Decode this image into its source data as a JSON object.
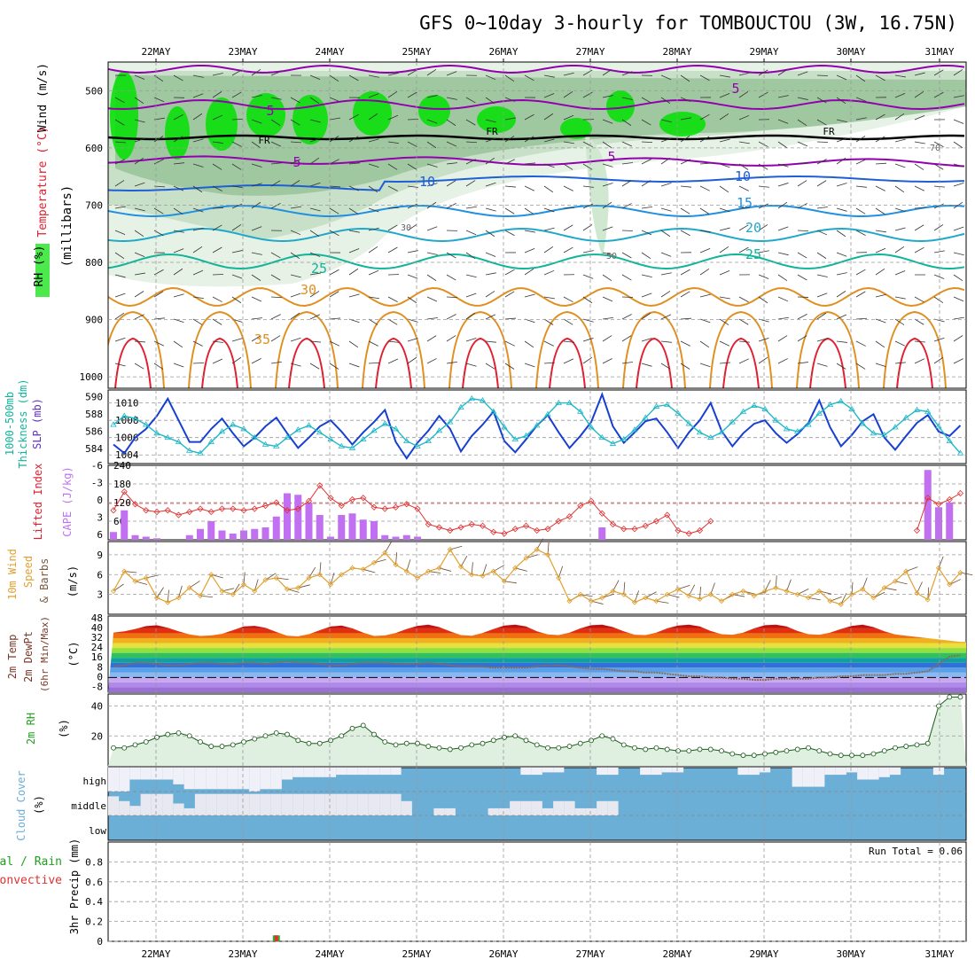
{
  "title": "GFS 0~10day 3-hourly for TOMBOUCTOU (3W, 16.75N)",
  "dates": [
    "22MAY",
    "23MAY",
    "24MAY",
    "25MAY",
    "26MAY",
    "27MAY",
    "28MAY",
    "29MAY",
    "30MAY",
    "31MAY"
  ],
  "colors": {
    "purple": "#9400b0",
    "blue": "#1f5fd6",
    "cyan": "#20a8c8",
    "teal": "#10b49a",
    "orange": "#e09020",
    "red": "#e02030",
    "rh_green": "#00e000",
    "cape": "#c070f0",
    "cloud_blue": "#6baed6",
    "cloud_white": "#f0f0f8",
    "wind_orange": "#e0a030"
  },
  "chart_data": [
    {
      "type": "contour",
      "panel": "pressure-time cross-section",
      "ylabel_parts": [
        "Wind (m/s)",
        "Temperature (°C)",
        "RH (%)",
        "(millibars)"
      ],
      "yticks": [
        "500",
        "600",
        "700",
        "800",
        "900",
        "1000"
      ],
      "ylim": [
        450,
        1020
      ],
      "isotherm_labels": [
        "5",
        "5",
        "5",
        "5",
        "10",
        "10",
        "15",
        "20",
        "25",
        "25",
        "30",
        "35"
      ],
      "freezing_label": "FR",
      "rh_labels": [
        "30",
        "50",
        "70"
      ]
    },
    {
      "type": "line",
      "panel": "thickness-slp",
      "ylabel_left": [
        "1000-500mb",
        "Thickness (dm)"
      ],
      "ylabel_right": "SLP (mb)",
      "yticks_left": [
        "584",
        "586",
        "588",
        "590"
      ],
      "yticks_right": [
        "1004",
        "1006",
        "1008",
        "1010"
      ],
      "ylim": [
        1003,
        1011.5
      ],
      "series": [
        {
          "name": "Thickness",
          "values": [
            1005.2,
            1004.2,
            1006.0,
            1007.0,
            1008.5,
            1010.5,
            1008.0,
            1005.5,
            1005.5,
            1007.0,
            1008.2,
            1006.5,
            1005.0,
            1006.0,
            1007.3,
            1008.3,
            1006.5,
            1004.8,
            1006.0,
            1007.3,
            1008.0,
            1006.7,
            1005.2,
            1006.6,
            1007.8,
            1009.2,
            1005.5,
            1003.6,
            1005.4,
            1006.8,
            1008.5,
            1007.0,
            1004.4,
            1006.2,
            1007.5,
            1009.0,
            1005.6,
            1004.3,
            1005.8,
            1007.4,
            1008.6,
            1006.6,
            1004.8,
            1006.2,
            1007.8,
            1011.0,
            1007.3,
            1005.4,
            1006.6,
            1007.9,
            1008.2,
            1006.6,
            1004.8,
            1006.6,
            1008.0,
            1010.0,
            1006.8,
            1005.0,
            1006.5,
            1007.6,
            1008.0,
            1006.5,
            1005.4,
            1006.4,
            1007.7,
            1010.3,
            1007.2,
            1005.0,
            1006.3,
            1007.9,
            1008.7,
            1006.0,
            1004.6,
            1006.2,
            1007.7,
            1008.6,
            1006.7,
            1006.2,
            1007.4
          ]
        },
        {
          "name": "SLP",
          "values": [
            1007.5,
            1008.5,
            1008.2,
            1007.5,
            1006.5,
            1006.0,
            1005.5,
            1004.5,
            1004.2,
            1005.5,
            1006.7,
            1007.5,
            1007.0,
            1006.0,
            1005.2,
            1005.0,
            1006.0,
            1006.9,
            1007.4,
            1006.6,
            1005.8,
            1005.0,
            1004.8,
            1005.8,
            1006.8,
            1007.6,
            1007.0,
            1005.6,
            1005.0,
            1005.6,
            1006.8,
            1007.8,
            1009.5,
            1010.5,
            1010.3,
            1009.0,
            1007.2,
            1005.8,
            1006.2,
            1007.4,
            1008.7,
            1010.0,
            1010.0,
            1009.0,
            1007.2,
            1006.0,
            1005.3,
            1005.8,
            1006.9,
            1008.3,
            1009.6,
            1009.8,
            1008.8,
            1007.6,
            1006.6,
            1006.0,
            1006.6,
            1007.8,
            1009.0,
            1009.7,
            1009.3,
            1008.0,
            1007.0,
            1006.7,
            1007.5,
            1008.8,
            1009.8,
            1010.2,
            1009.3,
            1007.6,
            1006.5,
            1006.3,
            1007.2,
            1008.3,
            1009.2,
            1009.0,
            1007.3,
            1005.6,
            1004.2
          ]
        }
      ]
    },
    {
      "type": "bar",
      "panel": "lifted index / cape",
      "ylabel_left": "Lifted Index",
      "ylabel_right": "CAPE (J/kg)",
      "yticks_left": [
        "-6",
        "-3",
        "0",
        "3",
        "6"
      ],
      "yticks_right": [
        "60",
        "120",
        "180",
        "240"
      ],
      "ylim": [
        0,
        240
      ],
      "series": [
        {
          "name": "CAPE",
          "values": [
            25,
            95,
            15,
            10,
            5,
            0,
            0,
            15,
            35,
            60,
            30,
            20,
            30,
            35,
            40,
            75,
            150,
            145,
            120,
            80,
            10,
            80,
            85,
            65,
            60,
            15,
            10,
            15,
            10,
            0,
            0,
            0,
            0,
            0,
            0,
            0,
            0,
            0,
            0,
            0,
            0,
            0,
            0,
            0,
            0,
            40,
            0,
            0,
            0,
            0,
            0,
            0,
            0,
            0,
            0,
            0,
            0,
            0,
            0,
            0,
            0,
            0,
            0,
            0,
            0,
            0,
            0,
            0,
            0,
            0,
            0,
            0,
            0,
            0,
            0,
            225,
            105,
            120,
            0
          ]
        },
        {
          "name": "Lifted Index",
          "values": [
            95,
            155,
            115,
            95,
            90,
            95,
            80,
            90,
            100,
            90,
            100,
            100,
            95,
            100,
            110,
            120,
            95,
            100,
            125,
            175,
            135,
            110,
            130,
            135,
            105,
            100,
            105,
            115,
            100,
            50,
            40,
            30,
            40,
            50,
            45,
            25,
            20,
            35,
            45,
            30,
            35,
            60,
            75,
            110,
            125,
            85,
            50,
            35,
            35,
            45,
            60,
            80,
            30,
            20,
            30,
            60,
            0,
            0,
            0,
            0,
            0,
            0,
            0,
            0,
            0,
            0,
            0,
            0,
            0,
            0,
            0,
            0,
            0,
            0,
            30,
            135,
            115,
            130,
            150
          ]
        }
      ]
    },
    {
      "type": "line",
      "panel": "10m wind",
      "ylabel": [
        "10m Wind",
        "Speed",
        "& Barbs",
        "(m/s)"
      ],
      "yticks": [
        "3",
        "6",
        "9"
      ],
      "ylim": [
        0,
        11
      ],
      "series": [
        {
          "name": "Speed",
          "values": [
            3.5,
            6.5,
            5.0,
            5.5,
            2.5,
            1.8,
            2.5,
            4.0,
            2.8,
            6.0,
            3.5,
            3.0,
            4.5,
            3.5,
            5.2,
            5.5,
            3.8,
            4.0,
            5.5,
            6.0,
            4.5,
            6.0,
            7.0,
            6.8,
            7.8,
            9.3,
            7.5,
            6.5,
            5.5,
            6.5,
            7.0,
            9.8,
            7.2,
            6.0,
            5.8,
            6.5,
            5.0,
            7.0,
            8.5,
            9.8,
            9.0,
            5.5,
            2.0,
            3.0,
            2.0,
            2.5,
            3.5,
            3.0,
            1.8,
            2.5,
            2.0,
            3.0,
            3.8,
            2.8,
            2.3,
            3.0,
            2.0,
            3.0,
            3.5,
            2.8,
            3.5,
            4.0,
            3.5,
            3.0,
            2.5,
            3.5,
            2.0,
            1.5,
            3.0,
            3.8,
            2.5,
            4.0,
            5.0,
            6.5,
            3.2,
            2.2,
            7.0,
            4.5,
            6.3
          ]
        }
      ]
    },
    {
      "type": "area",
      "panel": "2m temperature",
      "ylabel": [
        "2m Temp",
        "2m DewPt",
        "(6hr Min/Max)",
        "(°C)"
      ],
      "yticks": [
        "-8",
        "0",
        "8",
        "16",
        "24",
        "32",
        "40",
        "48"
      ],
      "ylim": [
        -12,
        50
      ],
      "series": [
        {
          "name": "Temperature",
          "values": [
            36.5,
            37.5,
            39.5,
            41.8,
            42.5,
            40.5,
            37.5,
            35.0,
            33.8,
            34.2,
            35.5,
            38.5,
            41.5,
            42.0,
            40.5,
            37.0,
            34.0,
            33.5,
            35.2,
            38.5,
            41.5,
            42.2,
            40.0,
            36.5,
            33.8,
            34.2,
            36.2,
            39.5,
            42.0,
            43.0,
            41.0,
            37.5,
            34.5,
            34.0,
            36.2,
            39.5,
            42.2,
            43.0,
            41.5,
            37.5,
            35.0,
            34.5,
            36.5,
            40.0,
            42.5,
            43.0,
            41.0,
            37.5,
            34.8,
            34.5,
            36.5,
            40.0,
            42.2,
            43.0,
            41.5,
            37.8,
            35.2,
            34.8,
            36.5,
            40.0,
            42.5,
            43.0,
            41.5,
            37.8,
            35.2,
            34.8,
            36.5,
            39.5,
            42.0,
            43.0,
            41.0,
            37.5,
            35.0,
            34.0,
            33.0,
            32.0,
            31.0,
            30.0,
            29.0
          ]
        },
        {
          "name": "Dewpoint",
          "values": [
            9,
            10,
            12,
            12,
            11,
            10,
            10,
            11,
            12,
            12,
            11,
            11,
            12,
            12,
            11,
            12,
            13,
            12,
            12,
            11,
            10,
            10,
            11,
            12,
            12,
            12,
            11,
            11,
            11,
            12,
            11,
            10,
            9,
            9,
            9,
            8,
            8,
            8,
            8,
            9,
            10,
            10,
            9,
            8,
            7,
            7,
            6,
            5,
            5,
            4,
            4,
            3,
            2,
            1,
            1,
            0,
            0,
            -1,
            -1,
            -2,
            -2,
            -1,
            -1,
            -1,
            -1,
            0,
            0,
            1,
            1,
            2,
            2,
            2,
            3,
            3,
            4,
            5,
            11,
            17,
            18
          ]
        }
      ]
    },
    {
      "type": "area",
      "panel": "2m rh",
      "ylabel": [
        "2m RH",
        "(%)"
      ],
      "yticks": [
        "20",
        "40"
      ],
      "ylim": [
        0,
        48
      ],
      "series": [
        {
          "name": "RH",
          "values": [
            12,
            12,
            14,
            16,
            19,
            21,
            22,
            20,
            16,
            13,
            13,
            14,
            16,
            18,
            20,
            22,
            21,
            17,
            15,
            15,
            17,
            20,
            25,
            27,
            21,
            16,
            14,
            15,
            15,
            13,
            12,
            11,
            12,
            14,
            15,
            17,
            19,
            20,
            17,
            14,
            12,
            12,
            13,
            15,
            17,
            20,
            18,
            14,
            12,
            11,
            12,
            11,
            10,
            10,
            11,
            11,
            10,
            8,
            7,
            7,
            8,
            9,
            10,
            11,
            12,
            10,
            8,
            7,
            7,
            7,
            8,
            10,
            12,
            13,
            14,
            15,
            40,
            46,
            46
          ]
        }
      ]
    },
    {
      "type": "bar",
      "panel": "cloud cover",
      "ylabel": [
        "Cloud Cover",
        "(%)"
      ],
      "ytick_labels": [
        "high",
        "middle",
        "low"
      ],
      "series": [
        {
          "name": "High",
          "values": [
            100,
            100,
            50,
            50,
            50,
            50,
            70,
            90,
            90,
            90,
            90,
            90,
            90,
            100,
            90,
            90,
            50,
            40,
            40,
            40,
            40,
            30,
            30,
            30,
            30,
            30,
            30,
            0,
            0,
            0,
            0,
            0,
            0,
            0,
            0,
            0,
            0,
            0,
            30,
            30,
            20,
            20,
            0,
            0,
            0,
            30,
            30,
            0,
            0,
            30,
            30,
            20,
            20,
            0,
            0,
            0,
            0,
            0,
            30,
            30,
            20,
            0,
            0,
            80,
            80,
            80,
            30,
            30,
            20,
            50,
            50,
            40,
            30,
            0,
            0,
            0,
            30,
            0,
            0
          ]
        },
        {
          "name": "Middle",
          "values": [
            80,
            60,
            40,
            90,
            90,
            90,
            50,
            30,
            90,
            90,
            90,
            90,
            90,
            90,
            90,
            90,
            90,
            90,
            90,
            90,
            90,
            90,
            90,
            90,
            90,
            90,
            90,
            60,
            0,
            0,
            30,
            30,
            0,
            0,
            0,
            30,
            30,
            60,
            60,
            60,
            30,
            60,
            60,
            30,
            30,
            60,
            60,
            0,
            0,
            0,
            0,
            0,
            0,
            0,
            0,
            0,
            0,
            0,
            0,
            0,
            0,
            0,
            0,
            0,
            0,
            0,
            0,
            0,
            0,
            0,
            0,
            0,
            0,
            0,
            0,
            0,
            0,
            0,
            0
          ]
        }
      ]
    },
    {
      "type": "bar",
      "panel": "3hr precip",
      "ylabel": [
        "Total / Rain",
        "Convective",
        "3hr Precip (mm)"
      ],
      "yticks": [
        "0",
        "0.2",
        "0.4",
        "0.6",
        "0.8"
      ],
      "ylim": [
        0,
        1.0
      ],
      "annotation": "Run Total = 0.06",
      "series": [
        {
          "name": "Total",
          "values": [
            0,
            0,
            0,
            0,
            0,
            0,
            0,
            0,
            0,
            0,
            0,
            0,
            0,
            0,
            0,
            0.06,
            0,
            0,
            0,
            0,
            0,
            0,
            0,
            0,
            0,
            0,
            0,
            0,
            0,
            0,
            0,
            0,
            0,
            0,
            0,
            0,
            0,
            0,
            0,
            0,
            0,
            0,
            0,
            0,
            0,
            0,
            0,
            0,
            0,
            0,
            0,
            0,
            0,
            0,
            0,
            0,
            0,
            0,
            0,
            0,
            0,
            0,
            0,
            0,
            0,
            0,
            0,
            0,
            0,
            0,
            0,
            0,
            0,
            0,
            0,
            0,
            0,
            0,
            0
          ]
        }
      ]
    }
  ]
}
